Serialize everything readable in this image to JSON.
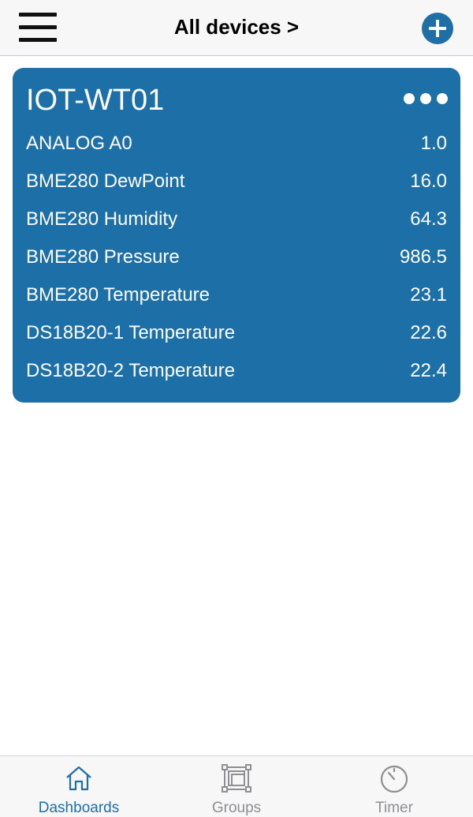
{
  "header": {
    "title": "All devices >",
    "menu_icon": "hamburger-menu-icon",
    "add_icon": "plus-circle-icon",
    "accent_color": "#1f6ea8"
  },
  "device_card": {
    "name": "IOT-WT01",
    "more_icon": "more-horizontal-icon",
    "background_color": "#1c6fa7",
    "sensors": [
      {
        "name": "ANALOG A0",
        "value": "1.0"
      },
      {
        "name": "BME280 DewPoint",
        "value": "16.0"
      },
      {
        "name": "BME280 Humidity",
        "value": "64.3"
      },
      {
        "name": "BME280 Pressure",
        "value": "986.5"
      },
      {
        "name": "BME280 Temperature",
        "value": "23.1"
      },
      {
        "name": "DS18B20-1 Temperature",
        "value": "22.6"
      },
      {
        "name": "DS18B20-2 Temperature",
        "value": "22.4"
      }
    ]
  },
  "tabbar": {
    "tabs": [
      {
        "label": "Dashboards",
        "icon": "home-icon",
        "active": true
      },
      {
        "label": "Groups",
        "icon": "groups-icon",
        "active": false
      },
      {
        "label": "Timer",
        "icon": "timer-icon",
        "active": false
      }
    ],
    "active_color": "#1f6ea8",
    "inactive_color": "#8e8e93"
  }
}
